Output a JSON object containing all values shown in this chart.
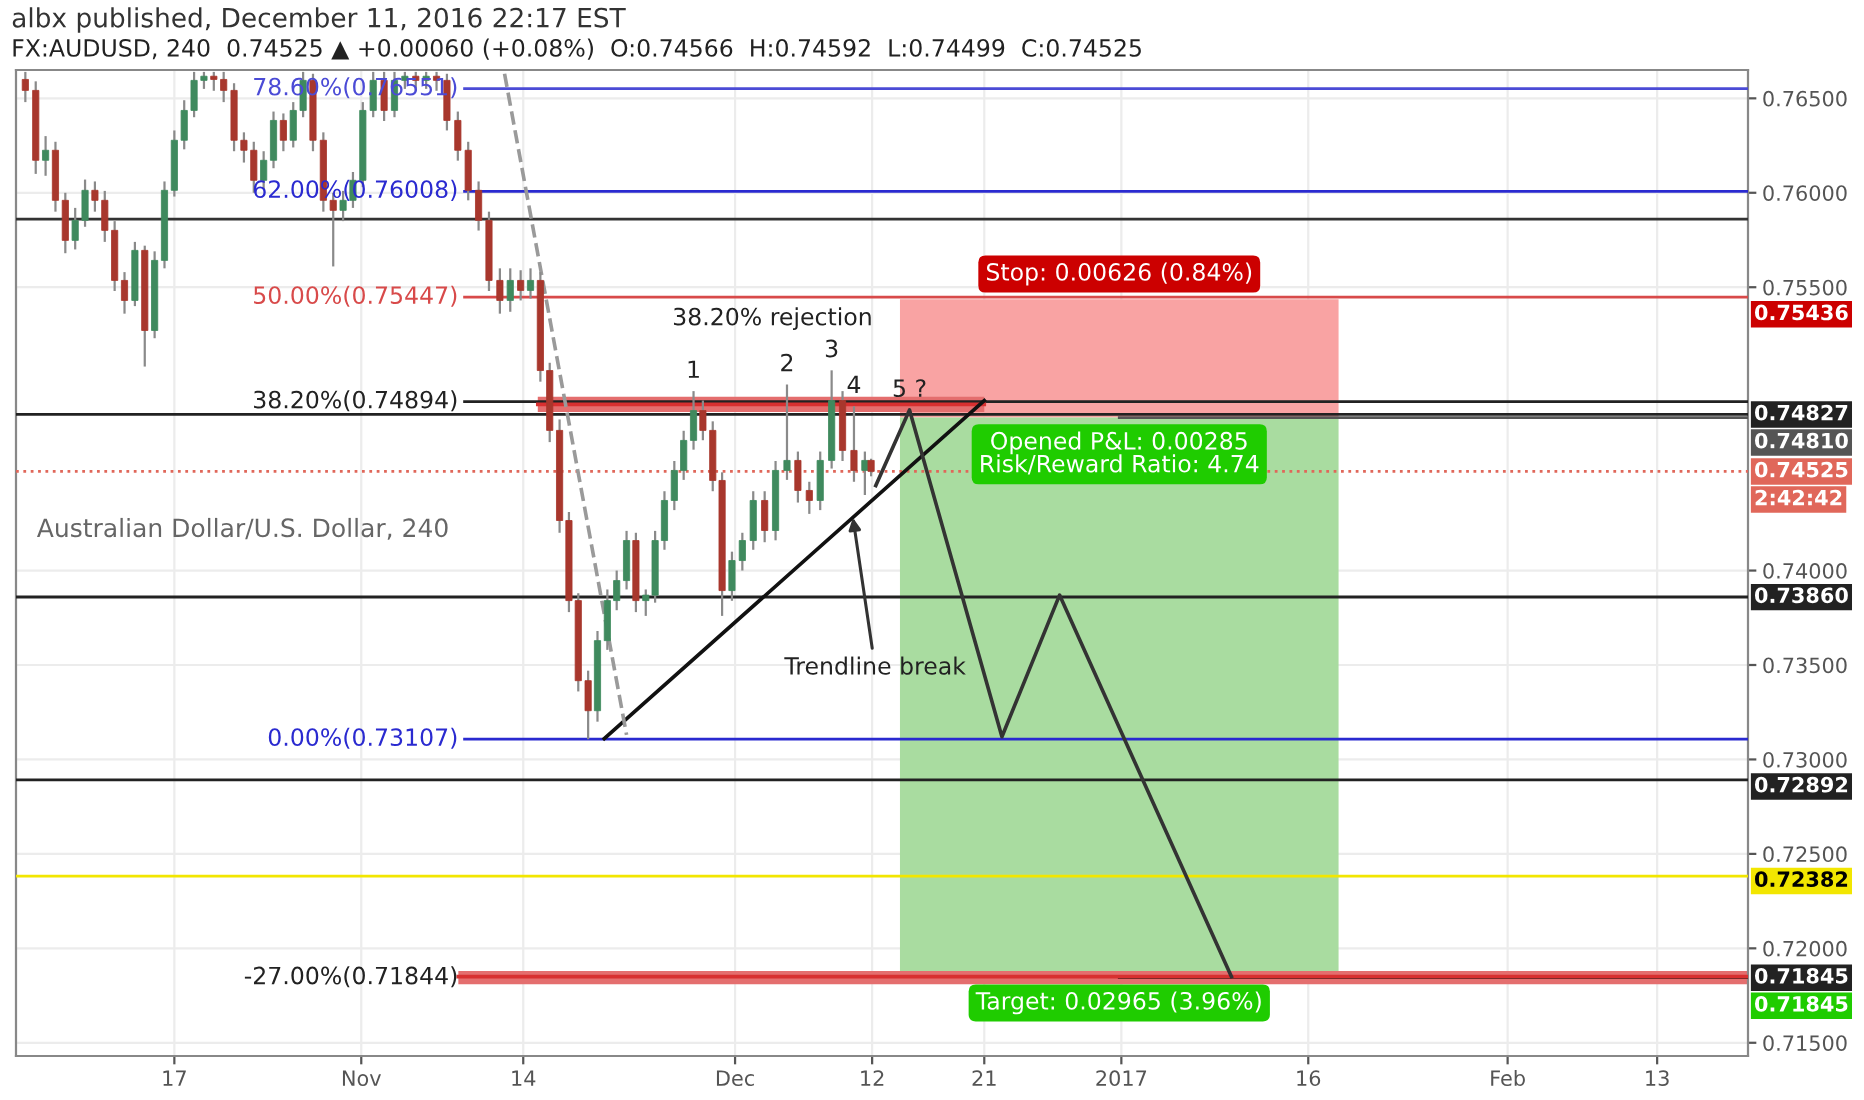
{
  "chart_data": {
    "type": "candlestick",
    "title": "albx published, December 11, 2016 22:17 EST",
    "subtitle": "FX:AUDUSD, 240  0.74525 ▲ +0.00060 (+0.08%)  O:0.74566  H:0.74592  L:0.74499  C:0.74525",
    "x": [
      "2016-10-05T01:00",
      "2016-10-05T21:00",
      "2016-10-06T16:00",
      "2016-10-07T11:00",
      "2016-10-08T06:00",
      "2016-10-09T01:00",
      "2016-10-09T20:00",
      "2016-10-10T15:00",
      "2016-10-11T10:00",
      "2016-10-12T05:00",
      "2016-10-13T00:00",
      "2016-10-13T20:00",
      "2016-10-14T15:00",
      "2016-10-15T10:00",
      "2016-10-16T05:00",
      "2016-10-17T00:00",
      "2016-10-17T19:00",
      "2016-10-18T14:00",
      "2016-10-19T09:00",
      "2016-10-20T04:00",
      "2016-10-20T23:00",
      "2016-10-21T19:00",
      "2016-10-22T14:00",
      "2016-10-23T09:00",
      "2016-10-24T04:00",
      "2016-10-24T23:00",
      "2016-10-25T18:00",
      "2016-10-26T13:00",
      "2016-10-27T08:00",
      "2016-10-28T03:00",
      "2016-10-28T23:00",
      "2016-10-29T18:00",
      "2016-10-30T13:00",
      "2016-10-31T08:00",
      "2016-11-01T03:00",
      "2016-11-01T23:00",
      "2016-11-02T20:00",
      "2016-11-03T16:00",
      "2016-11-04T12:00",
      "2016-11-05T09:00",
      "2016-11-06T05:00",
      "2016-11-07T01:00",
      "2016-11-07T21:00",
      "2016-11-08T18:00",
      "2016-11-09T14:00",
      "2016-11-10T10:00",
      "2016-11-11T06:00",
      "2016-11-12T03:00",
      "2016-11-12T23:00",
      "2016-11-13T19:00",
      "2016-11-14T14:00",
      "2016-11-15T09:00",
      "2016-11-16T03:00",
      "2016-11-16T22:00",
      "2016-11-17T16:00",
      "2016-11-18T10:00",
      "2016-11-19T05:00",
      "2016-11-19T23:00",
      "2016-11-20T18:00",
      "2016-11-21T12:00",
      "2016-11-22T07:00",
      "2016-11-23T01:00",
      "2016-11-23T20:00",
      "2016-11-24T14:00",
      "2016-11-25T08:00",
      "2016-11-26T03:00",
      "2016-11-26T21:00",
      "2016-11-27T16:00",
      "2016-11-28T10:00",
      "2016-11-29T05:00",
      "2016-11-29T23:00",
      "2016-11-30T18:00",
      "2016-12-01T14:00",
      "2016-12-02T11:00",
      "2016-12-03T09:00",
      "2016-12-04T06:00",
      "2016-12-05T04:00",
      "2016-12-06T01:00",
      "2016-12-06T23:00",
      "2016-12-07T20:00",
      "2016-12-08T18:00",
      "2016-12-09T15:00",
      "2016-12-10T13:00",
      "2016-12-11T10:00",
      "2016-12-11T22:00"
    ],
    "ohlc": [
      [
        0.766,
        0.7664,
        0.7648,
        0.76542
      ],
      [
        0.76542,
        0.7659,
        0.761,
        0.76172
      ],
      [
        0.76172,
        0.763,
        0.7609,
        0.76225
      ],
      [
        0.76225,
        0.7627,
        0.759,
        0.7596
      ],
      [
        0.7596,
        0.76,
        0.7568,
        0.75748
      ],
      [
        0.75748,
        0.7592,
        0.757,
        0.75854
      ],
      [
        0.75854,
        0.7607,
        0.7582,
        0.76013
      ],
      [
        0.76013,
        0.7606,
        0.759,
        0.7596
      ],
      [
        0.7596,
        0.7601,
        0.7574,
        0.75801
      ],
      [
        0.75801,
        0.7585,
        0.7548,
        0.75536
      ],
      [
        0.75536,
        0.7558,
        0.7536,
        0.7543
      ],
      [
        0.7543,
        0.7574,
        0.754,
        0.75695
      ],
      [
        0.75695,
        0.7572,
        0.7508,
        0.75271
      ],
      [
        0.75271,
        0.7569,
        0.7523,
        0.75642
      ],
      [
        0.75642,
        0.7606,
        0.756,
        0.76013
      ],
      [
        0.76013,
        0.7633,
        0.7598,
        0.76278
      ],
      [
        0.76278,
        0.7649,
        0.7623,
        0.76436
      ],
      [
        0.76436,
        0.7664,
        0.764,
        0.76595
      ],
      [
        0.76595,
        0.7664,
        0.7655,
        0.76617
      ],
      [
        0.76617,
        0.7664,
        0.7654,
        0.766
      ],
      [
        0.766,
        0.7664,
        0.7648,
        0.76542
      ],
      [
        0.76542,
        0.7658,
        0.7622,
        0.76278
      ],
      [
        0.76278,
        0.7632,
        0.7616,
        0.76225
      ],
      [
        0.76225,
        0.7627,
        0.76,
        0.76066
      ],
      [
        0.76066,
        0.7622,
        0.7602,
        0.76172
      ],
      [
        0.76172,
        0.7643,
        0.7613,
        0.76383
      ],
      [
        0.76383,
        0.7642,
        0.7622,
        0.76278
      ],
      [
        0.76278,
        0.7648,
        0.7624,
        0.76436
      ],
      [
        0.76436,
        0.7664,
        0.764,
        0.76595
      ],
      [
        0.76595,
        0.7663,
        0.7622,
        0.76278
      ],
      [
        0.76278,
        0.7632,
        0.759,
        0.7596
      ],
      [
        0.7596,
        0.76,
        0.7561,
        0.75907
      ],
      [
        0.75907,
        0.7601,
        0.7585,
        0.7596
      ],
      [
        0.7596,
        0.7611,
        0.7592,
        0.76066
      ],
      [
        0.76066,
        0.7648,
        0.7603,
        0.76436
      ],
      [
        0.76436,
        0.7664,
        0.764,
        0.76595
      ],
      [
        0.76595,
        0.7664,
        0.7638,
        0.76436
      ],
      [
        0.76436,
        0.7664,
        0.764,
        0.76595
      ],
      [
        0.76595,
        0.7664,
        0.7655,
        0.76617
      ],
      [
        0.76617,
        0.7664,
        0.7654,
        0.76595
      ],
      [
        0.76595,
        0.7664,
        0.7655,
        0.76617
      ],
      [
        0.76617,
        0.7664,
        0.7654,
        0.76595
      ],
      [
        0.76595,
        0.7663,
        0.7633,
        0.76383
      ],
      [
        0.76383,
        0.7643,
        0.7617,
        0.76225
      ],
      [
        0.76225,
        0.7627,
        0.7596,
        0.76013
      ],
      [
        0.76013,
        0.7606,
        0.758,
        0.75854
      ],
      [
        0.75854,
        0.759,
        0.7548,
        0.75536
      ],
      [
        0.75536,
        0.756,
        0.7536,
        0.7543
      ],
      [
        0.7543,
        0.756,
        0.7537,
        0.75536
      ],
      [
        0.75536,
        0.7559,
        0.7543,
        0.75483
      ],
      [
        0.75483,
        0.756,
        0.7544,
        0.75536
      ],
      [
        0.75536,
        0.7558,
        0.75,
        0.75059
      ],
      [
        0.75059,
        0.751,
        0.7468,
        0.74742
      ],
      [
        0.74742,
        0.748,
        0.742,
        0.74265
      ],
      [
        0.74265,
        0.7431,
        0.7378,
        0.73841
      ],
      [
        0.73841,
        0.7388,
        0.7336,
        0.73417
      ],
      [
        0.73417,
        0.7347,
        0.73107,
        0.73258
      ],
      [
        0.73258,
        0.7368,
        0.732,
        0.73629
      ],
      [
        0.73629,
        0.739,
        0.7358,
        0.73841
      ],
      [
        0.73841,
        0.74,
        0.7379,
        0.73947
      ],
      [
        0.73947,
        0.7421,
        0.739,
        0.74159
      ],
      [
        0.74159,
        0.742,
        0.7378,
        0.73841
      ],
      [
        0.73841,
        0.739,
        0.7376,
        0.7387
      ],
      [
        0.7387,
        0.7421,
        0.7383,
        0.74159
      ],
      [
        0.74159,
        0.7442,
        0.7411,
        0.74371
      ],
      [
        0.74371,
        0.7458,
        0.7432,
        0.7453
      ],
      [
        0.7453,
        0.7474,
        0.7448,
        0.74689
      ],
      [
        0.74689,
        0.7495,
        0.7464,
        0.74847
      ],
      [
        0.74847,
        0.749,
        0.7469,
        0.74742
      ],
      [
        0.74742,
        0.7479,
        0.7442,
        0.74477
      ],
      [
        0.74477,
        0.7452,
        0.7376,
        0.73894
      ],
      [
        0.73894,
        0.741,
        0.7384,
        0.74053
      ],
      [
        0.74053,
        0.742,
        0.74,
        0.74159
      ],
      [
        0.74159,
        0.7442,
        0.7411,
        0.74371
      ],
      [
        0.74371,
        0.7442,
        0.7415,
        0.74212
      ],
      [
        0.74212,
        0.7458,
        0.7416,
        0.7453
      ],
      [
        0.7453,
        0.74985,
        0.7448,
        0.74583
      ],
      [
        0.74583,
        0.7463,
        0.7436,
        0.74424
      ],
      [
        0.74424,
        0.7447,
        0.743,
        0.74371
      ],
      [
        0.74371,
        0.7463,
        0.7432,
        0.74583
      ],
      [
        0.74583,
        0.7506,
        0.7454,
        0.749
      ],
      [
        0.749,
        0.7495,
        0.7458,
        0.74636
      ],
      [
        0.74636,
        0.7487,
        0.7447,
        0.7453
      ],
      [
        0.7453,
        0.7463,
        0.744,
        0.74583
      ],
      [
        0.74583,
        0.74592,
        0.74499,
        0.74525
      ]
    ],
    "xlim": [
      "2016-10-04T07:00",
      "2017-02-20T07:00"
    ],
    "xticks": [
      {
        "value": "2016-10-17",
        "label": "17"
      },
      {
        "value": "2016-11-01",
        "label": "Nov"
      },
      {
        "value": "2016-11-14",
        "label": "14"
      },
      {
        "value": "2016-12-01",
        "label": "Dec"
      },
      {
        "value": "2016-12-12",
        "label": "12"
      },
      {
        "value": "2016-12-21",
        "label": "21"
      },
      {
        "value": "2017-01-01",
        "label": "2017"
      },
      {
        "value": "2017-01-16",
        "label": "16"
      },
      {
        "value": "2017-02-01",
        "label": "Feb"
      },
      {
        "value": "2017-02-13",
        "label": "13"
      }
    ],
    "ylim": [
      0.7143,
      0.7665
    ],
    "yticks": [
      {
        "value": 0.765,
        "label": "0.76500"
      },
      {
        "value": 0.76,
        "label": "0.76000"
      },
      {
        "value": 0.755,
        "label": "0.75500"
      },
      {
        "value": 0.74,
        "label": "0.74000"
      },
      {
        "value": 0.735,
        "label": "0.73500"
      },
      {
        "value": 0.73,
        "label": "0.73000"
      },
      {
        "value": 0.725,
        "label": "0.72500"
      },
      {
        "value": 0.72,
        "label": "0.72000"
      },
      {
        "value": 0.715,
        "label": "0.71500"
      }
    ],
    "grid": true,
    "series": [
      {
        "type": "bar",
        "x": [
          "2016-12-31T20:00"
        ],
        "values": [
          0.00626
        ],
        "base": [
          0.7481
        ],
        "color": "#f9a3a3"
      },
      {
        "type": "bar",
        "x": [
          "2016-12-31T20:00"
        ],
        "values": [
          0.02965
        ],
        "base": [
          0.71845
        ],
        "color": "#a9dca0"
      },
      {
        "type": "line",
        "x": [
          "2016-11-15T04:00",
          "2016-12-21T00:00"
        ],
        "values": [
          0.7488,
          0.7488
        ],
        "lower": [
          0.7484,
          0.7484
        ],
        "upper": [
          0.7492,
          0.7492
        ],
        "color": "#d83030"
      },
      {
        "type": "line",
        "x": [
          "2016-11-08T19:00",
          "2017-02-20T07:00"
        ],
        "values": [
          0.7185,
          0.7185
        ],
        "lower": [
          0.7181,
          0.7181
        ],
        "upper": [
          0.7188,
          0.7188
        ],
        "color": "#d83030"
      },
      {
        "type": "line",
        "x": [
          "2016-11-20T12:00",
          "2016-12-21T00:00"
        ],
        "values": [
          0.7311,
          0.749
        ],
        "color": "#111111"
      },
      {
        "type": "line",
        "x": [
          "2016-12-12T07:00",
          "2016-12-15T00:00",
          "2016-12-22T10:00",
          "2016-12-27T01:00",
          "2017-01-09T20:00"
        ],
        "values": [
          0.7445,
          0.7485,
          0.7312,
          0.7387,
          0.7185
        ],
        "color": "#333333"
      },
      {
        "type": "line",
        "x": [
          "2016-11-12T12:00",
          "2016-11-22T07:00"
        ],
        "values": [
          0.7663,
          0.7313
        ],
        "color": "#9a9a9a",
        "line_style": "dashed"
      }
    ],
    "ref_lines": [
      {
        "axis": "y",
        "value": 0.76551,
        "color": "#4b4bd6"
      },
      {
        "axis": "y",
        "value": 0.76008,
        "color": "#2a2ad0"
      },
      {
        "axis": "y",
        "value": 0.7586,
        "color": "#333333"
      },
      {
        "axis": "y",
        "value": 0.75447,
        "color": "#d84a4a"
      },
      {
        "axis": "y",
        "value": 0.74894,
        "color": "#222222"
      },
      {
        "axis": "y",
        "value": 0.74827,
        "color": "#222222"
      },
      {
        "axis": "y",
        "value": 0.7481,
        "color": "#555555"
      },
      {
        "axis": "y",
        "value": 0.74525,
        "color": "#e0675a",
        "line_style": "dotted"
      },
      {
        "axis": "y",
        "value": 0.7386,
        "color": "#222222"
      },
      {
        "axis": "y",
        "value": 0.73107,
        "color": "#2a2ad0"
      },
      {
        "axis": "y",
        "value": 0.72892,
        "color": "#222222"
      },
      {
        "axis": "y",
        "value": 0.72382,
        "color": "#f2e600"
      },
      {
        "axis": "y",
        "value": 0.71845,
        "color": "#222222"
      }
    ],
    "annotations": [
      "Australian Dollar/U.S. Dollar, 240",
      {
        "text": "78.60%(0.76551)",
        "x": "2016-11-09T07:00",
        "y": 0.76551
      },
      {
        "text": "62.00%(0.76008)",
        "x": "2016-11-09T07:00",
        "y": 0.76008
      },
      {
        "text": "50.00%(0.75447)",
        "x": "2016-11-09T07:00",
        "y": 0.75447
      },
      {
        "text": "38.20%(0.74894)",
        "x": "2016-11-09T07:00",
        "y": 0.74894
      },
      {
        "text": "0.00%(0.73107)",
        "x": "2016-11-09T07:00",
        "y": 0.73107
      },
      {
        "text": "-27.00%(0.71844)",
        "x": "2016-11-09T07:00",
        "y": 0.71845
      },
      {
        "text": "1",
        "x": "2016-11-27T16:00",
        "y": 0.7495
      },
      {
        "text": "2",
        "x": "2016-12-05T04:00",
        "y": 0.74985
      },
      {
        "text": "3",
        "x": "2016-12-08T18:00",
        "y": 0.7506
      },
      {
        "text": "4",
        "x": "2016-12-10T13:00",
        "y": 0.7487
      },
      {
        "text": "5 ?",
        "x": "2016-12-15T00:00",
        "y": 0.7485
      },
      {
        "text": "38.20% rejection",
        "x": "2016-12-04T00:00",
        "y": 0.7492
      },
      {
        "text": "Trendline break",
        "x": "2016-12-10T11:00",
        "y": 0.7428
      },
      {
        "text": "Stop: 0.00626 (0.84%)",
        "x": "2016-12-31T20:00",
        "y": 0.75436
      },
      {
        "text": "Opened P&L: 0.00285\nRisk/Reward Ratio: 4.74",
        "x": "2016-12-31T20:00",
        "y": 0.7481
      },
      {
        "text": "Target: 0.02965 (3.96%)",
        "x": "2016-12-31T20:00",
        "y": 0.71845
      },
      {
        "text": "0.75436",
        "x": "2017-02-20T07:00",
        "y": 0.75436
      },
      {
        "text": "0.74827",
        "x": "2017-02-20T07:00",
        "y": 0.74827
      },
      {
        "text": "0.74810",
        "x": "2017-02-20T07:00",
        "y": 0.7481
      },
      {
        "text": "0.74525",
        "x": "2017-02-20T07:00",
        "y": 0.74525
      },
      {
        "text": "2:42:42",
        "x": "2017-02-20T07:00",
        "y": 0.74525
      },
      {
        "text": "0.73860",
        "x": "2017-02-20T07:00",
        "y": 0.7386
      },
      {
        "text": "0.72892",
        "x": "2017-02-20T07:00",
        "y": 0.72892
      },
      {
        "text": "0.72382",
        "x": "2017-02-20T07:00",
        "y": 0.72382
      },
      {
        "text": "0.71845",
        "x": "2017-02-20T07:00",
        "y": 0.71845
      },
      {
        "text": "0.71845",
        "x": "2017-02-20T07:00",
        "y": 0.71845
      }
    ]
  }
}
